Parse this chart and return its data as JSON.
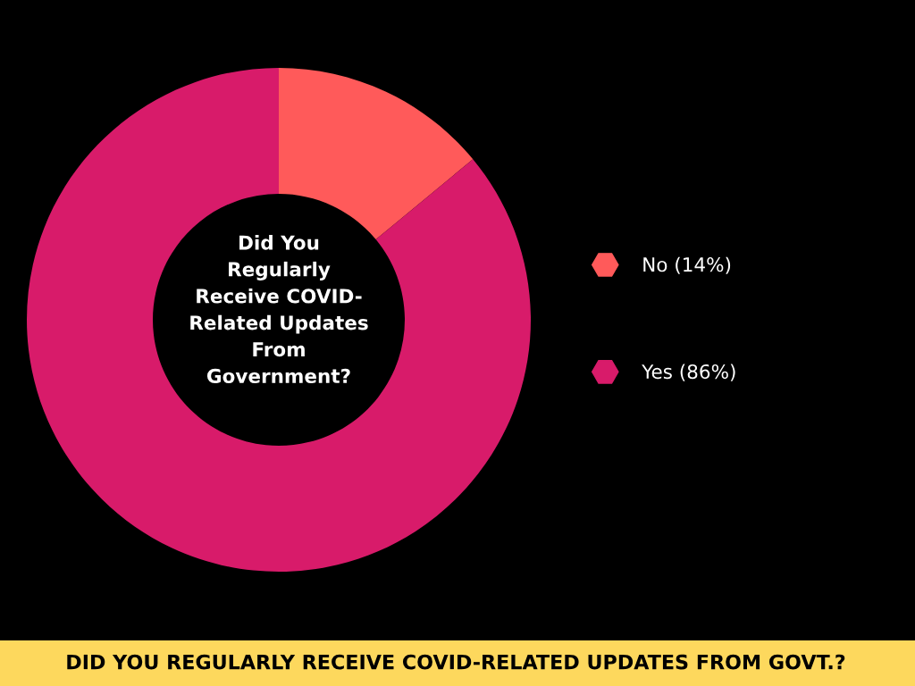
{
  "chart_data": {
    "type": "donut",
    "title": "DID YOU REGULARLY RECEIVE COVID-RELATED UPDATES FROM GOVT.?",
    "annotations": [
      "Did You\nRegularly\nReceive COVID-\nRelated Updates\nFrom\nGovernment?"
    ],
    "categories": [
      "No (14%)",
      "Yes (86%)"
    ],
    "values": [
      14,
      86
    ],
    "colors": [
      "#ff5a5a",
      "#d81b6a"
    ],
    "legend": "right"
  }
}
